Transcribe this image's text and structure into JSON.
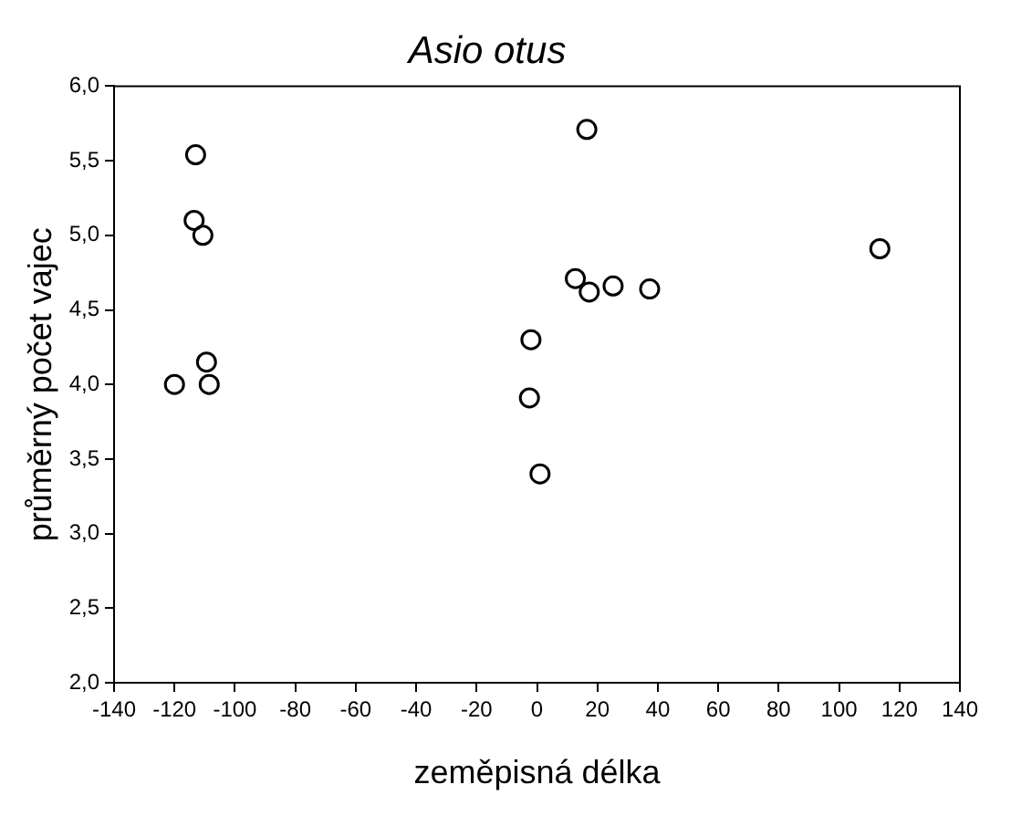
{
  "chart_data": {
    "type": "scatter",
    "title": "Asio otus",
    "xlabel": "zeměpisná délka",
    "ylabel": "průměrný počet vajec",
    "x": [
      -113,
      -113.5,
      -110.6,
      -109.4,
      -108.5,
      -120,
      -2,
      -2.5,
      1,
      16.5,
      12.7,
      17.3,
      25.2,
      37.3,
      113.5
    ],
    "values": [
      5.54,
      5.1,
      5.0,
      4.15,
      4.0,
      4.0,
      4.3,
      3.91,
      3.4,
      5.71,
      4.71,
      4.62,
      4.66,
      4.64,
      4.91
    ],
    "color": "#000000",
    "marker": "circle",
    "xlim": [
      -140,
      140
    ],
    "xticks": [
      -140,
      -120,
      -100,
      -80,
      -60,
      -40,
      -20,
      0,
      20,
      40,
      60,
      80,
      100,
      120,
      140
    ],
    "ylim": [
      2,
      6
    ],
    "yticks": [
      {
        "value": 2,
        "label": "2,0"
      },
      {
        "value": 2.5,
        "label": "2,5"
      },
      {
        "value": 3,
        "label": "3,0"
      },
      {
        "value": 3.5,
        "label": "3,5"
      },
      {
        "value": 4,
        "label": "4,0"
      },
      {
        "value": 4.5,
        "label": "4,5"
      },
      {
        "value": 5,
        "label": "5,0"
      },
      {
        "value": 5.5,
        "label": "5,5"
      },
      {
        "value": 6,
        "label": "6,0"
      }
    ],
    "grid": false,
    "legend": false
  }
}
